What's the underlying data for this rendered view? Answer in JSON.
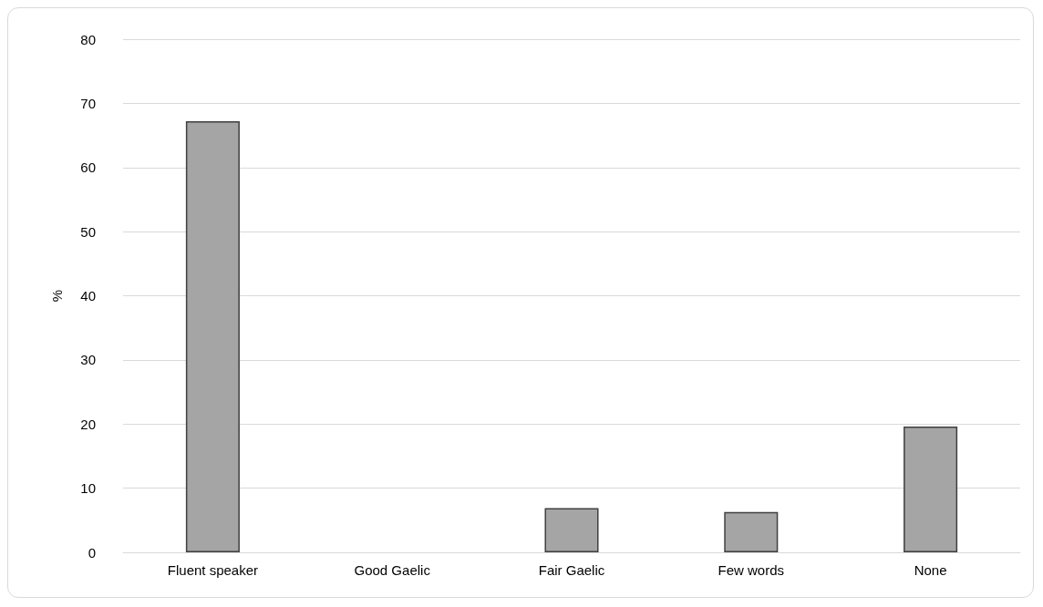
{
  "chart_data": {
    "type": "bar",
    "ylabel": "%",
    "categories": [
      "Fluent speaker",
      "Good Gaelic",
      "Fair Gaelic",
      "Few words",
      "None"
    ],
    "values": [
      67.2,
      0,
      6.9,
      6.3,
      19.6
    ],
    "color": "#a5a5a5",
    "ylim": [
      0,
      80
    ],
    "yticks": [
      0,
      10,
      20,
      30,
      40,
      50,
      60,
      70,
      80
    ],
    "grid": "y"
  }
}
